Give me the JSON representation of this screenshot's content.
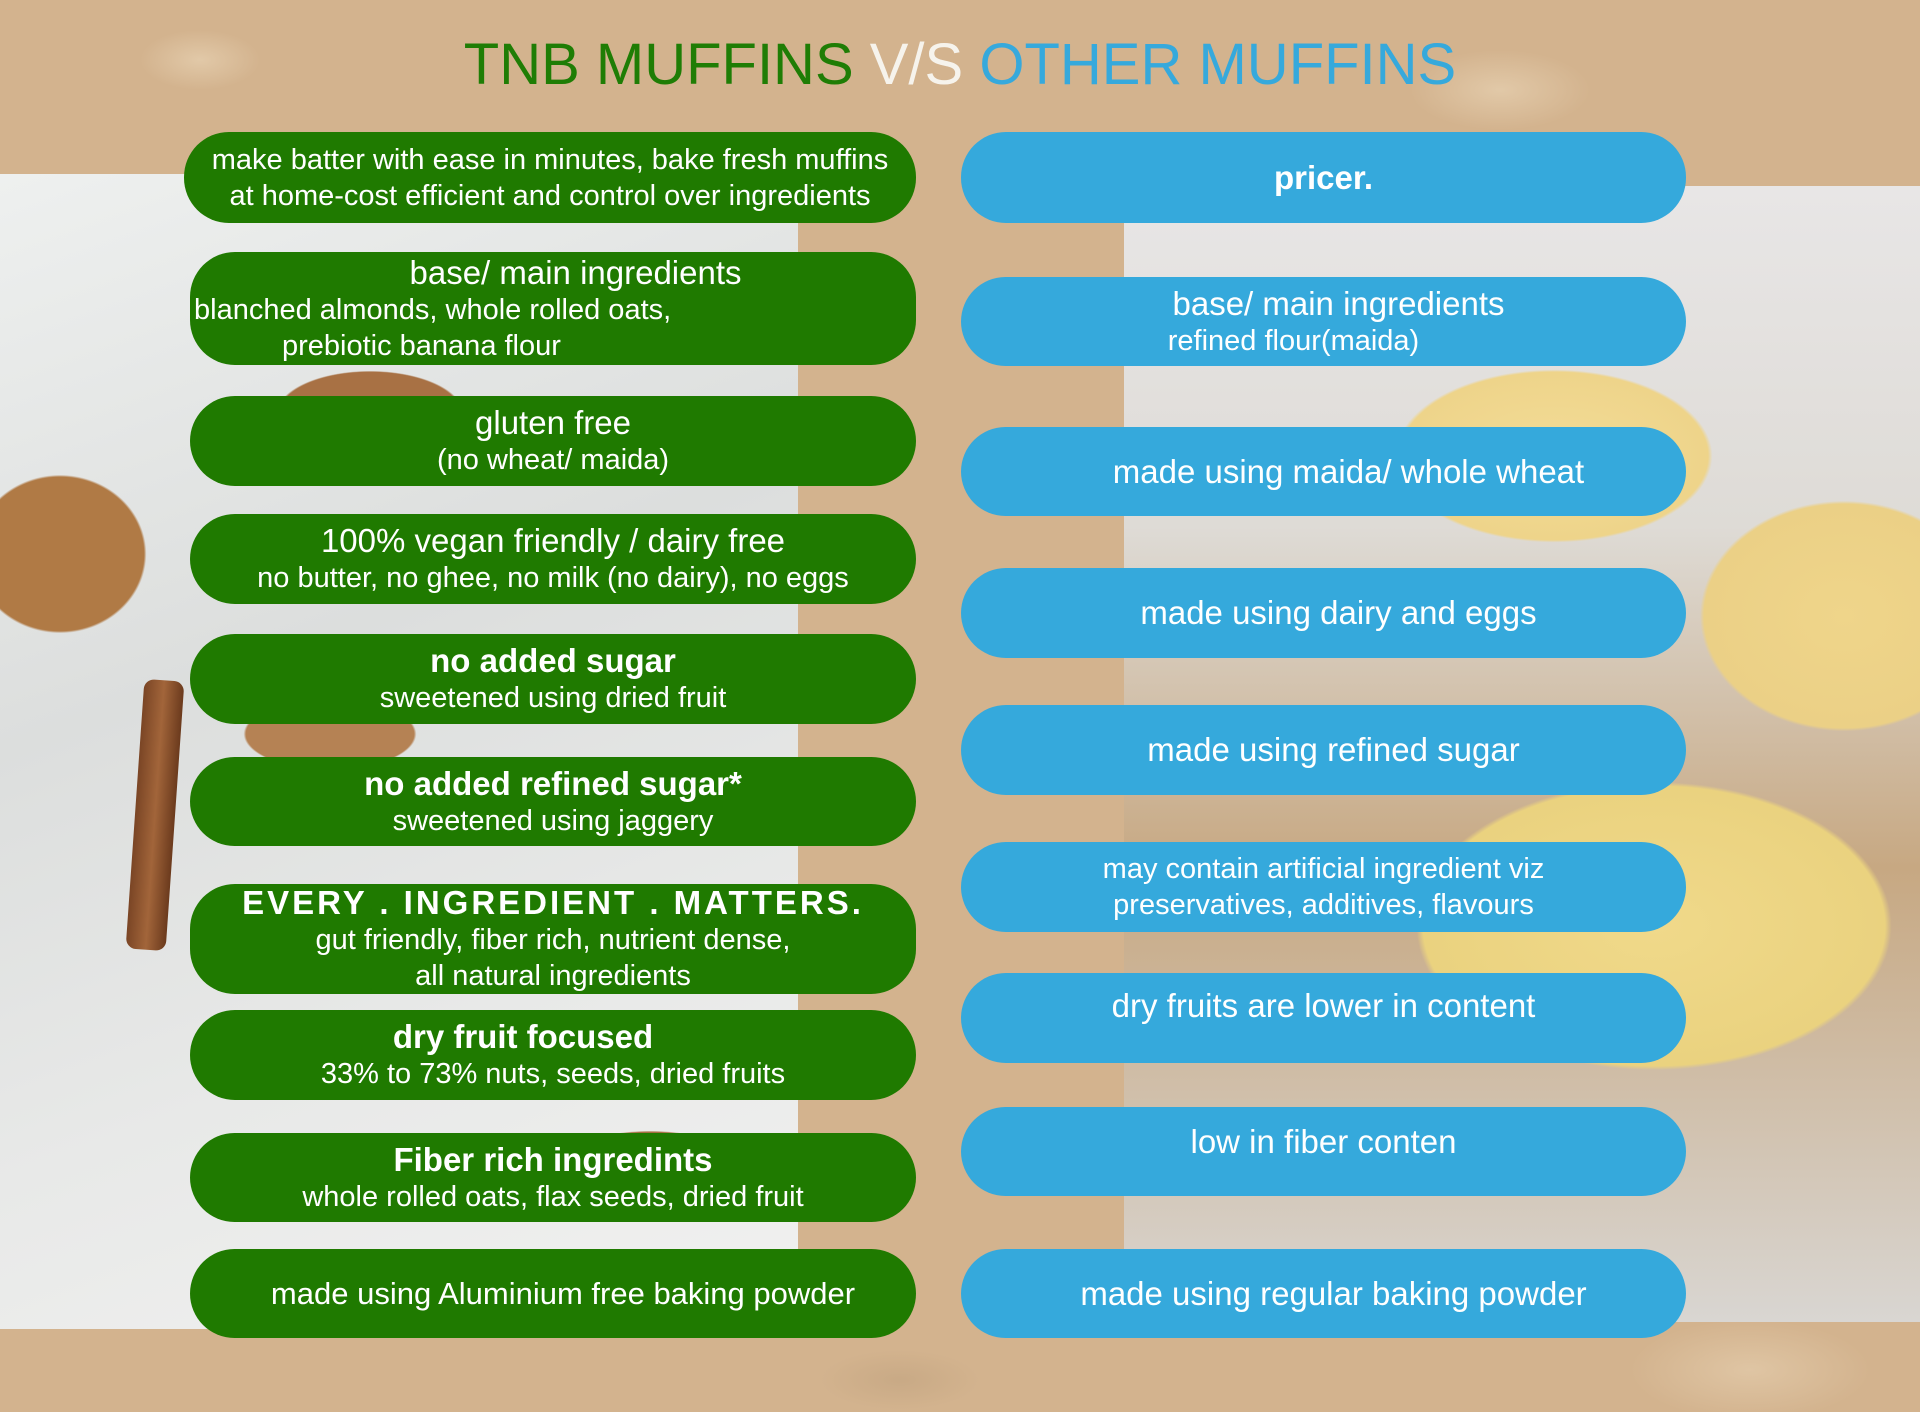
{
  "title": {
    "left": "TNB MUFFINS",
    "vs": "V/S",
    "right": "OTHER MUFFINS"
  },
  "colors": {
    "tnb_green": "#1f7a00",
    "other_blue": "#35a9dc",
    "background": "#d3b38e"
  },
  "tnb": [
    {
      "lines": [
        "make batter with ease in minutes, bake fresh muffins",
        "at home-cost efficient and control over ingredients"
      ]
    },
    {
      "heading": "base/ main ingredients",
      "lines": [
        "blanched almonds, whole rolled oats,",
        "prebiotic banana flour"
      ]
    },
    {
      "heading": "gluten free",
      "lines": [
        "(no wheat/ maida)"
      ]
    },
    {
      "heading": "100% vegan friendly / dairy free",
      "lines": [
        "no butter, no ghee, no milk (no dairy), no eggs"
      ]
    },
    {
      "heading": "no added sugar",
      "lines": [
        "sweetened using dried fruit"
      ]
    },
    {
      "heading": "no added refined sugar*",
      "lines": [
        "sweetened using jaggery"
      ]
    },
    {
      "heading": "EVERY . INGREDIENT . MATTERS.",
      "lines": [
        "gut friendly, fiber rich, nutrient dense,",
        "all natural ingredients"
      ]
    },
    {
      "heading": "dry fruit focused",
      "lines": [
        "33% to 73% nuts, seeds, dried fruits"
      ]
    },
    {
      "heading": "Fiber rich ingredints",
      "lines": [
        "whole rolled oats, flax seeds, dried fruit"
      ]
    },
    {
      "lines": [
        "made using Aluminium free baking powder"
      ]
    }
  ],
  "other": [
    {
      "heading": "pricer."
    },
    {
      "heading": "base/ main ingredients",
      "lines": [
        "refined flour(maida)"
      ]
    },
    {
      "lines": [
        "made using maida/ whole wheat"
      ]
    },
    {
      "lines": [
        "made using dairy and eggs"
      ]
    },
    {
      "lines": [
        "made using refined sugar"
      ]
    },
    {
      "lines": [
        "may contain artificial ingredient viz",
        "preservatives, additives, flavours"
      ]
    },
    {
      "lines": [
        "dry fruits are lower in content"
      ]
    },
    {
      "lines": [
        "low in fiber conten"
      ]
    },
    {
      "lines": [
        "made using regular baking powder"
      ]
    }
  ]
}
